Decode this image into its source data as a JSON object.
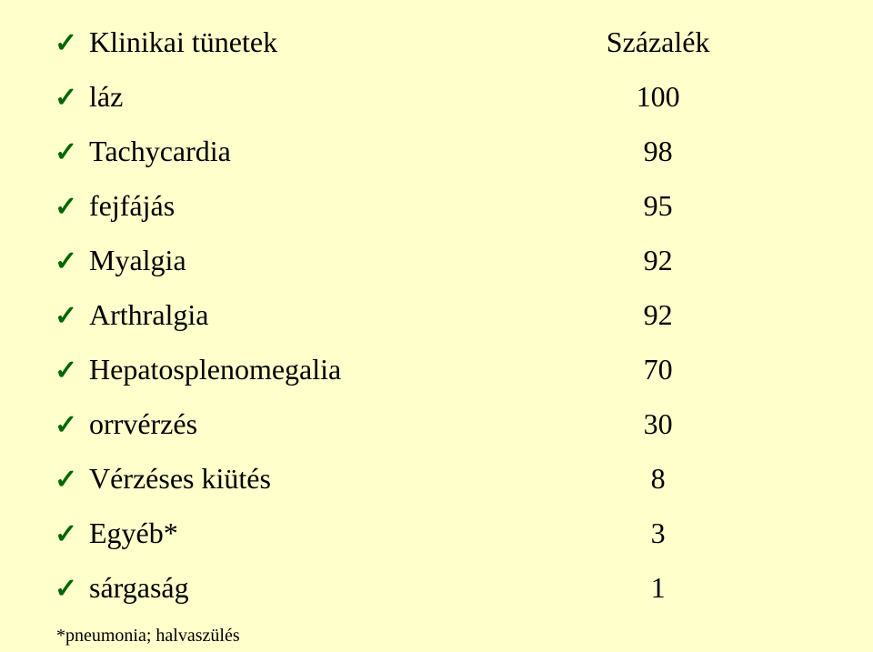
{
  "colors": {
    "background": "#ffffcc",
    "text": "#000000",
    "checkmark": "#006600"
  },
  "typography": {
    "font_family": "Times New Roman, serif",
    "label_fontsize_pt": 24,
    "value_fontsize_pt": 24,
    "footnote_fontsize_pt": 15,
    "checkmark_fontsize_pt": 22
  },
  "header": {
    "left": "Klinikai tünetek",
    "right": "Százalék"
  },
  "rows": [
    {
      "label": "láz",
      "value": "100"
    },
    {
      "label": "Tachycardia",
      "value": "98"
    },
    {
      "label": "fejfájás",
      "value": "95"
    },
    {
      "label": "Myalgia",
      "value": "92"
    },
    {
      "label": "Arthralgia",
      "value": "92"
    },
    {
      "label": "Hepatosplenomegalia",
      "value": "70"
    },
    {
      "label": "orrvérzés",
      "value": "30"
    },
    {
      "label": "Vérzéses kiütés",
      "value": "8"
    },
    {
      "label": "Egyéb*",
      "value": "3"
    },
    {
      "label": "sárgaság",
      "value": "1"
    }
  ],
  "footnote": "*pneumonia; halvaszülés",
  "icons": {
    "check_glyph": "✓"
  }
}
